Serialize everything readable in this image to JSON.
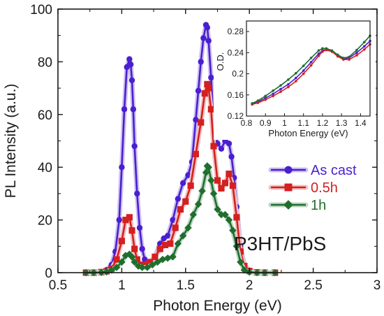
{
  "chart_data": [
    {
      "type": "line",
      "xlabel": "Photon Energy (eV)",
      "ylabel": "PL Intensity (a.u.)",
      "xlim": [
        0.5,
        3.0
      ],
      "ylim": [
        0,
        100
      ],
      "xticks": [
        0.5,
        1.0,
        1.5,
        2.0,
        2.5,
        3.0
      ],
      "xtick_labels": [
        "0.5",
        "1",
        "1.5",
        "2",
        "2.5",
        "3"
      ],
      "yticks": [
        0,
        20,
        40,
        60,
        80,
        100
      ],
      "ytick_labels": [
        "0",
        "20",
        "40",
        "60",
        "80",
        "100"
      ],
      "grid": false,
      "legend": "right",
      "annotation": "P3HT/PbS",
      "series": [
        {
          "name": "As cast",
          "color": "#4a1fd1",
          "marker": "circle",
          "x": [
            0.72,
            0.78,
            0.84,
            0.88,
            0.92,
            0.95,
            0.98,
            1.0,
            1.02,
            1.04,
            1.06,
            1.07,
            1.08,
            1.09,
            1.1,
            1.12,
            1.14,
            1.16,
            1.18,
            1.2,
            1.23,
            1.26,
            1.3,
            1.33,
            1.36,
            1.4,
            1.44,
            1.48,
            1.52,
            1.55,
            1.58,
            1.6,
            1.62,
            1.64,
            1.66,
            1.67,
            1.68,
            1.7,
            1.72,
            1.75,
            1.78,
            1.81,
            1.84,
            1.86,
            1.88,
            1.9,
            1.93,
            1.96,
            2.0,
            2.06,
            2.12,
            2.2
          ],
          "y": [
            0,
            0,
            0.3,
            1,
            3,
            8,
            20,
            40,
            62,
            78,
            81,
            79,
            73,
            62,
            48,
            30,
            17,
            9,
            5,
            3.5,
            4,
            6,
            11,
            13,
            14,
            20,
            28,
            34,
            37,
            42,
            58,
            69,
            80,
            89,
            94,
            93,
            88,
            74,
            56,
            49,
            47,
            50,
            49,
            44,
            36,
            25,
            10,
            3,
            0.8,
            0.2,
            0,
            0
          ]
        },
        {
          "name": "0.5h",
          "color": "#d42020",
          "marker": "square",
          "x": [
            0.72,
            0.78,
            0.84,
            0.88,
            0.92,
            0.96,
            1.0,
            1.03,
            1.06,
            1.08,
            1.1,
            1.12,
            1.15,
            1.18,
            1.22,
            1.26,
            1.3,
            1.34,
            1.38,
            1.42,
            1.46,
            1.5,
            1.54,
            1.58,
            1.62,
            1.65,
            1.67,
            1.68,
            1.7,
            1.72,
            1.75,
            1.78,
            1.81,
            1.84,
            1.87,
            1.9,
            1.93,
            1.96,
            2.0,
            2.06,
            2.12,
            2.2
          ],
          "y": [
            0,
            0,
            0.2,
            0.5,
            1.5,
            5,
            12,
            20,
            21,
            16,
            9,
            5,
            3,
            3,
            4,
            6,
            9,
            10.5,
            11,
            17,
            24,
            27,
            33,
            45,
            57,
            68,
            71.5,
            70,
            62,
            48,
            35,
            32,
            34,
            37.5,
            33,
            21,
            8,
            2.5,
            0.6,
            0.1,
            0,
            0
          ]
        },
        {
          "name": "1h",
          "color": "#1f6e2e",
          "marker": "diamond",
          "x": [
            0.72,
            0.78,
            0.84,
            0.88,
            0.92,
            0.96,
            1.0,
            1.03,
            1.06,
            1.08,
            1.1,
            1.13,
            1.16,
            1.2,
            1.24,
            1.28,
            1.32,
            1.36,
            1.4,
            1.44,
            1.48,
            1.52,
            1.56,
            1.6,
            1.63,
            1.66,
            1.67,
            1.68,
            1.7,
            1.72,
            1.75,
            1.78,
            1.81,
            1.84,
            1.87,
            1.9,
            1.93,
            1.96,
            2.0,
            2.06,
            2.12,
            2.2
          ],
          "y": [
            0,
            0,
            0.1,
            0.3,
            1,
            2,
            4,
            6.5,
            7,
            6,
            4,
            2.5,
            2,
            2,
            3,
            4,
            5,
            5.5,
            6,
            11,
            14,
            17,
            22,
            26,
            31,
            38,
            40.5,
            40,
            35,
            30,
            24,
            22,
            22,
            20,
            16,
            10,
            4,
            1,
            0.2,
            0,
            0,
            0
          ]
        }
      ]
    },
    {
      "type": "line",
      "xlabel": "Photon Energy (eV)",
      "ylabel": "O.D.",
      "xlim": [
        0.8,
        1.45
      ],
      "ylim": [
        0.12,
        0.3
      ],
      "xticks": [
        0.8,
        0.9,
        1.0,
        1.1,
        1.2,
        1.3,
        1.4
      ],
      "xtick_labels": [
        "0.8",
        "0.9",
        "1",
        "1.1",
        "1.2",
        "1.3",
        "1.4"
      ],
      "yticks": [
        0.12,
        0.16,
        0.2,
        0.24,
        0.28
      ],
      "ytick_labels": [
        "0.12",
        "0.16",
        "0.2",
        "0.24",
        "0.28"
      ],
      "grid": false,
      "series": [
        {
          "color": "#4a1fd1",
          "x": [
            0.83,
            0.86,
            0.9,
            0.94,
            0.98,
            1.02,
            1.06,
            1.1,
            1.14,
            1.18,
            1.2,
            1.22,
            1.25,
            1.28,
            1.31,
            1.34,
            1.38,
            1.42,
            1.45
          ],
          "y": [
            0.143,
            0.147,
            0.154,
            0.162,
            0.171,
            0.18,
            0.192,
            0.206,
            0.222,
            0.238,
            0.244,
            0.246,
            0.242,
            0.234,
            0.228,
            0.23,
            0.24,
            0.252,
            0.262
          ]
        },
        {
          "color": "#d42020",
          "x": [
            0.83,
            0.86,
            0.9,
            0.94,
            0.98,
            1.02,
            1.06,
            1.1,
            1.14,
            1.18,
            1.2,
            1.22,
            1.25,
            1.28,
            1.31,
            1.34,
            1.38,
            1.42,
            1.45
          ],
          "y": [
            0.142,
            0.145,
            0.151,
            0.158,
            0.166,
            0.175,
            0.186,
            0.2,
            0.216,
            0.234,
            0.242,
            0.245,
            0.242,
            0.233,
            0.227,
            0.227,
            0.235,
            0.246,
            0.256
          ]
        },
        {
          "color": "#1f6e2e",
          "x": [
            0.83,
            0.86,
            0.9,
            0.94,
            0.98,
            1.02,
            1.06,
            1.1,
            1.14,
            1.18,
            1.2,
            1.22,
            1.25,
            1.28,
            1.31,
            1.34,
            1.38,
            1.42,
            1.45
          ],
          "y": [
            0.144,
            0.149,
            0.158,
            0.168,
            0.178,
            0.189,
            0.201,
            0.215,
            0.23,
            0.244,
            0.248,
            0.248,
            0.244,
            0.236,
            0.23,
            0.232,
            0.245,
            0.26,
            0.272
          ]
        }
      ]
    }
  ]
}
